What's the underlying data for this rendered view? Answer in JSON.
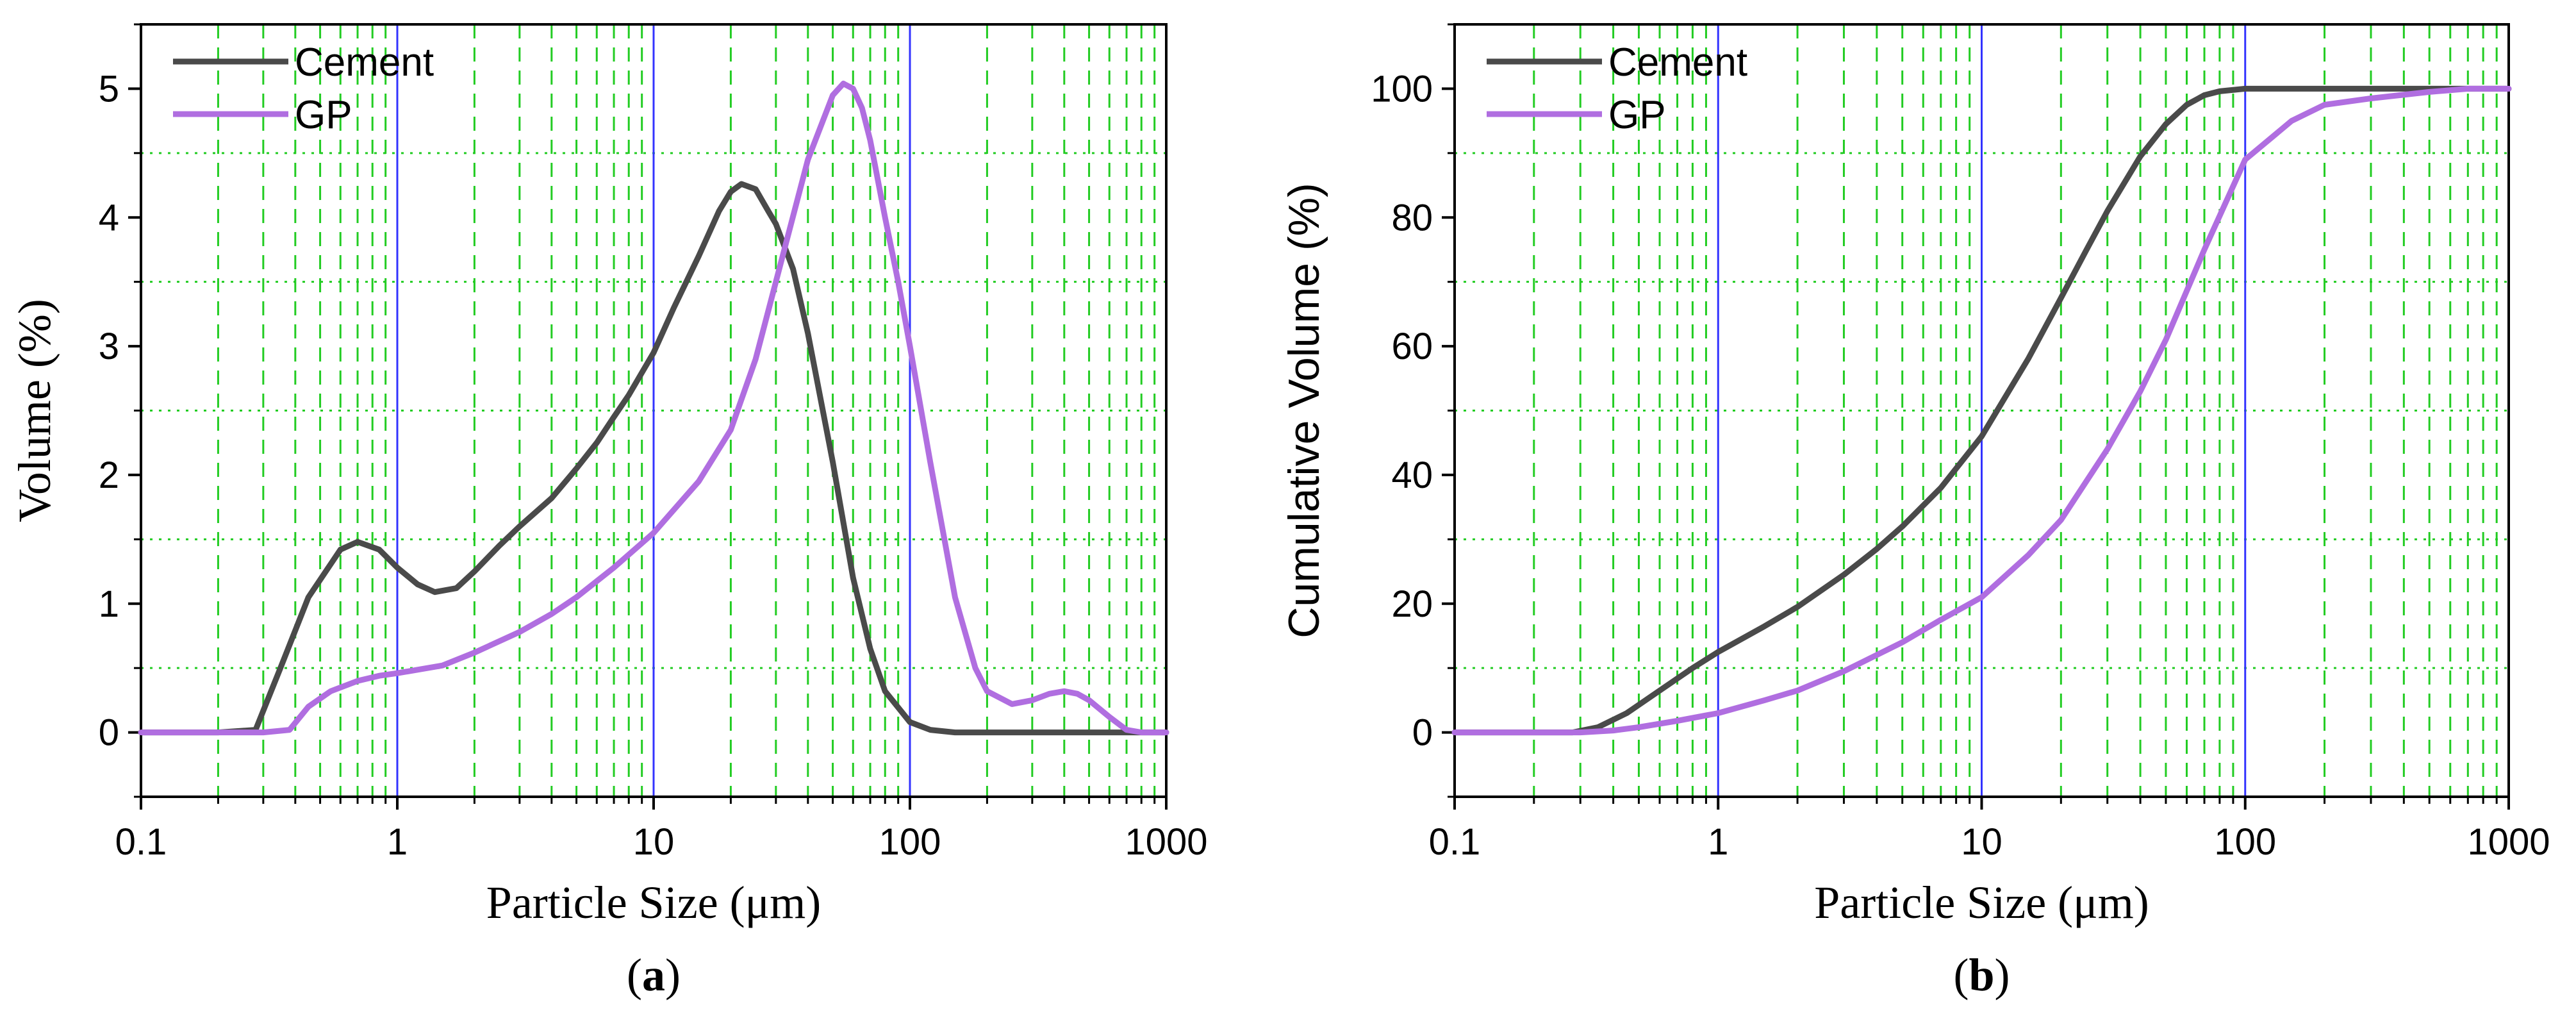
{
  "chart_data": [
    {
      "type": "line",
      "panel_label": "a",
      "title": "",
      "xlabel": "Particle Size (μm)",
      "ylabel": "Volume (%)",
      "xscale": "log",
      "xlim": [
        0.1,
        1000
      ],
      "ylim": [
        -0.5,
        5.5
      ],
      "xticks": [
        0.1,
        1,
        10,
        100,
        1000
      ],
      "xtick_labels": [
        "0.1",
        "1",
        "10",
        "100",
        "1000"
      ],
      "yticks": [
        0,
        1,
        2,
        3,
        4,
        5
      ],
      "ytick_labels": [
        "0",
        "1",
        "2",
        "3",
        "4",
        "5"
      ],
      "grid": true,
      "legend_position": "top-left",
      "series": [
        {
          "name": "Cement",
          "color": "#4a4a4a",
          "x": [
            0.1,
            0.2,
            0.28,
            0.35,
            0.45,
            0.6,
            0.7,
            0.85,
            1,
            1.2,
            1.4,
            1.7,
            2,
            2.5,
            3,
            4,
            5,
            6,
            7,
            8,
            10,
            12,
            15,
            18,
            20,
            22,
            25,
            28,
            30,
            35,
            40,
            50,
            60,
            70,
            80,
            100,
            120,
            150,
            200,
            300,
            500,
            1000
          ],
          "y": [
            0,
            0,
            0.02,
            0.5,
            1.05,
            1.42,
            1.48,
            1.42,
            1.28,
            1.15,
            1.09,
            1.12,
            1.25,
            1.45,
            1.6,
            1.82,
            2.05,
            2.25,
            2.45,
            2.62,
            2.95,
            3.3,
            3.7,
            4.05,
            4.2,
            4.26,
            4.22,
            4.05,
            3.95,
            3.6,
            3.1,
            2.1,
            1.2,
            0.65,
            0.32,
            0.08,
            0.02,
            0,
            0,
            0,
            0,
            0
          ]
        },
        {
          "name": "GP",
          "color": "#b06ee0",
          "x": [
            0.1,
            0.2,
            0.3,
            0.38,
            0.45,
            0.55,
            0.7,
            0.85,
            1,
            1.5,
            2,
            3,
            4,
            5,
            7,
            10,
            15,
            20,
            25,
            30,
            40,
            50,
            55,
            60,
            65,
            70,
            80,
            90,
            100,
            120,
            150,
            180,
            200,
            250,
            300,
            350,
            400,
            450,
            500,
            600,
            700,
            800,
            1000
          ],
          "y": [
            0,
            0,
            0,
            0.02,
            0.2,
            0.32,
            0.4,
            0.44,
            0.46,
            0.52,
            0.62,
            0.78,
            0.92,
            1.05,
            1.28,
            1.55,
            1.95,
            2.35,
            2.9,
            3.5,
            4.45,
            4.95,
            5.04,
            5.0,
            4.85,
            4.6,
            4.0,
            3.5,
            3.0,
            2.1,
            1.05,
            0.5,
            0.32,
            0.22,
            0.25,
            0.3,
            0.32,
            0.3,
            0.25,
            0.12,
            0.02,
            0,
            0
          ]
        }
      ]
    },
    {
      "type": "line",
      "panel_label": "b",
      "title": "",
      "xlabel": "Particle Size (μm)",
      "ylabel": "Cumulative Volume (%)",
      "xscale": "log",
      "xlim": [
        0.1,
        1000
      ],
      "ylim": [
        -10,
        110
      ],
      "xticks": [
        0.1,
        1,
        10,
        100,
        1000
      ],
      "xtick_labels": [
        "0.1",
        "1",
        "10",
        "100",
        "1000"
      ],
      "yticks": [
        0,
        20,
        40,
        60,
        80,
        100
      ],
      "ytick_labels": [
        "0",
        "20",
        "40",
        "60",
        "80",
        "100"
      ],
      "grid": true,
      "legend_position": "top-left",
      "series": [
        {
          "name": "Cement",
          "color": "#4a4a4a",
          "x": [
            0.1,
            0.2,
            0.28,
            0.35,
            0.45,
            0.6,
            0.8,
            1,
            1.5,
            2,
            3,
            4,
            5,
            7,
            10,
            15,
            20,
            25,
            30,
            40,
            50,
            60,
            70,
            80,
            100,
            150,
            200,
            500,
            1000
          ],
          "y": [
            0,
            0,
            0,
            0.8,
            3,
            6.5,
            10,
            12.5,
            16.5,
            19.5,
            24.5,
            28.5,
            32,
            38,
            46,
            58,
            67.5,
            75,
            81,
            89.5,
            94.5,
            97.5,
            99,
            99.6,
            100,
            100,
            100,
            100,
            100
          ]
        },
        {
          "name": "GP",
          "color": "#b06ee0",
          "x": [
            0.1,
            0.3,
            0.4,
            0.5,
            0.7,
            1,
            1.5,
            2,
            3,
            5,
            7,
            10,
            15,
            20,
            30,
            40,
            50,
            70,
            100,
            150,
            200,
            300,
            500,
            700,
            1000
          ],
          "y": [
            0,
            0,
            0.3,
            0.8,
            1.8,
            3,
            5,
            6.5,
            9.5,
            14,
            17.5,
            21,
            27.5,
            33,
            44,
            53,
            61,
            75,
            89,
            95,
            97.5,
            98.5,
            99.5,
            100,
            100
          ]
        }
      ]
    }
  ]
}
